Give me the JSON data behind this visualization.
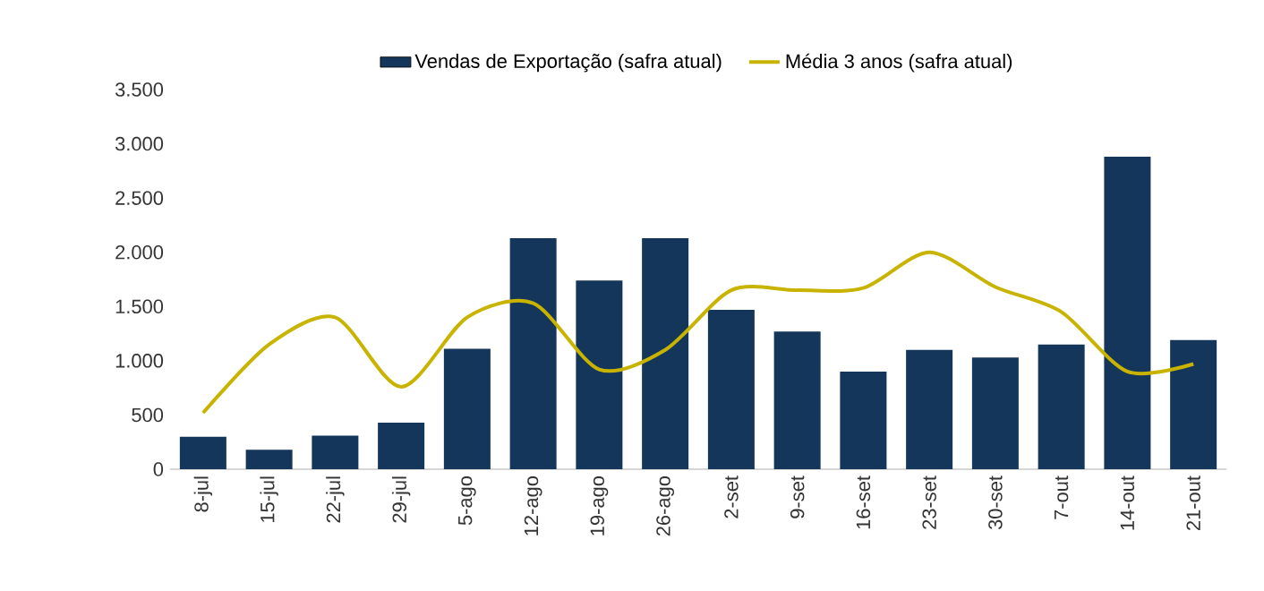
{
  "chart_data": {
    "type": "bar",
    "categories": [
      "8-jul",
      "15-jul",
      "22-jul",
      "29-jul",
      "5-ago",
      "12-ago",
      "19-ago",
      "26-ago",
      "2-set",
      "9-set",
      "16-set",
      "23-set",
      "30-set",
      "7-out",
      "14-out",
      "21-out"
    ],
    "series": [
      {
        "name": "Vendas de Exportação (safra atual)",
        "color": "#14365a",
        "values": [
          300,
          180,
          310,
          430,
          1110,
          2130,
          1740,
          2130,
          1470,
          1270,
          900,
          1100,
          1030,
          1150,
          2880,
          1190
        ]
      },
      {
        "name": "Média 3 anos (safra atual)",
        "type": "line",
        "color": "#c8b400",
        "marker": "none",
        "line_style": "solid",
        "values": [
          520,
          1150,
          1400,
          760,
          1400,
          1530,
          920,
          1100,
          1650,
          1650,
          1670,
          2000,
          1680,
          1450,
          900,
          970
        ]
      }
    ],
    "ylim": [
      0,
      3500
    ],
    "yticks": [
      {
        "value": 0,
        "label": "0"
      },
      {
        "value": 500,
        "label": "500"
      },
      {
        "value": 1000,
        "label": "1.000"
      },
      {
        "value": 1500,
        "label": "1.500"
      },
      {
        "value": 2000,
        "label": "2.000"
      },
      {
        "value": 2500,
        "label": "2.500"
      },
      {
        "value": 3000,
        "label": "3.000"
      },
      {
        "value": 3500,
        "label": "3.500"
      }
    ],
    "legend": "top"
  }
}
